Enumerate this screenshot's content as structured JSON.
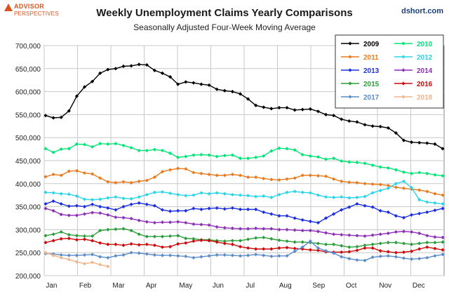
{
  "logo": {
    "line1": "ADVISOR",
    "line2": "PERSPECTIVES"
  },
  "site": "dshort.com",
  "chart_data": {
    "type": "line",
    "title": "Weekly Unemployment Claims Yearly Comparisons",
    "subtitle": "Seasonally Adjusted Four-Week Moving Average",
    "xlabel": "",
    "ylabel": "",
    "ylim": [
      200000,
      700000
    ],
    "yticks": [
      "200,000",
      "250,000",
      "300,000",
      "350,000",
      "400,000",
      "450,000",
      "500,000",
      "550,000",
      "600,000",
      "650,000",
      "700,000"
    ],
    "x_axis": "week of year (1-52)",
    "month_labels": [
      "Jan",
      "Feb",
      "Mar",
      "Apr",
      "May",
      "Jun",
      "Jul",
      "Aug",
      "Sep",
      "Oct",
      "Nov",
      "Dec"
    ],
    "grid": true,
    "legend_position": "top-right",
    "series": [
      {
        "name": "2009",
        "color": "#000000",
        "values": [
          548000,
          543000,
          544000,
          558000,
          590000,
          610000,
          622000,
          640000,
          648000,
          650000,
          655000,
          656000,
          659000,
          658000,
          646000,
          640000,
          632000,
          616000,
          621000,
          619000,
          616000,
          614000,
          605000,
          602000,
          600000,
          595000,
          584000,
          570000,
          566000,
          563000,
          565000,
          565000,
          560000,
          561000,
          562000,
          557000,
          550000,
          548000,
          540000,
          536000,
          534000,
          528000,
          525000,
          524000,
          521000,
          510000,
          494000,
          490000,
          489000,
          488000,
          486000,
          476000
        ]
      },
      {
        "name": "2010",
        "color": "#00e676",
        "values": [
          476000,
          468000,
          475000,
          476000,
          486000,
          485000,
          480000,
          487000,
          486000,
          487000,
          483000,
          478000,
          472000,
          472000,
          474000,
          472000,
          466000,
          457000,
          459000,
          462000,
          463000,
          462000,
          459000,
          461000,
          462000,
          455000,
          455000,
          457000,
          460000,
          471000,
          477000,
          476000,
          473000,
          463000,
          460000,
          458000,
          453000,
          455000,
          449000,
          447000,
          446000,
          444000,
          440000,
          436000,
          434000,
          430000,
          425000,
          422000,
          424000,
          422000,
          419000,
          417000
        ]
      },
      {
        "name": "2011",
        "color": "#e87b1e",
        "values": [
          415000,
          420000,
          418000,
          427000,
          428000,
          423000,
          421000,
          412000,
          404000,
          402000,
          404000,
          402000,
          405000,
          407000,
          414000,
          426000,
          430000,
          433000,
          432000,
          424000,
          422000,
          420000,
          418000,
          418000,
          420000,
          418000,
          414000,
          414000,
          411000,
          409000,
          408000,
          410000,
          412000,
          418000,
          418000,
          417000,
          416000,
          410000,
          405000,
          403000,
          402000,
          400000,
          399000,
          398000,
          396000,
          392000,
          390000,
          388000,
          386000,
          383000,
          378000,
          375000
        ]
      },
      {
        "name": "2012",
        "color": "#29d5e8",
        "values": [
          381000,
          380000,
          378000,
          377000,
          373000,
          366000,
          365000,
          366000,
          369000,
          371000,
          368000,
          367000,
          371000,
          376000,
          381000,
          382000,
          379000,
          376000,
          374000,
          375000,
          380000,
          378000,
          380000,
          378000,
          376000,
          375000,
          374000,
          372000,
          373000,
          370000,
          376000,
          381000,
          383000,
          381000,
          380000,
          375000,
          371000,
          370000,
          371000,
          369000,
          370000,
          372000,
          380000,
          385000,
          390000,
          400000,
          405000,
          391000,
          365000,
          360000,
          358000,
          356000
        ]
      },
      {
        "name": "2013",
        "color": "#1c2fe0",
        "values": [
          356000,
          362000,
          356000,
          351000,
          352000,
          350000,
          355000,
          350000,
          347000,
          343000,
          350000,
          355000,
          358000,
          355000,
          352000,
          343000,
          340000,
          341000,
          341000,
          346000,
          344000,
          346000,
          347000,
          345000,
          347000,
          344000,
          344000,
          344000,
          338000,
          334000,
          330000,
          330000,
          325000,
          321000,
          318000,
          315000,
          325000,
          334000,
          343000,
          349000,
          356000,
          352000,
          349000,
          341000,
          338000,
          330000,
          326000,
          332000,
          335000,
          338000,
          342000,
          346000
        ]
      },
      {
        "name": "2014",
        "color": "#8e2fb8",
        "values": [
          346000,
          341000,
          333000,
          331000,
          331000,
          334000,
          337000,
          336000,
          332000,
          327000,
          326000,
          324000,
          320000,
          317000,
          315000,
          316000,
          316000,
          317000,
          315000,
          312000,
          311000,
          310000,
          306000,
          304000,
          303000,
          302000,
          302000,
          303000,
          302000,
          302000,
          300000,
          300000,
          299000,
          298000,
          298000,
          296000,
          293000,
          290000,
          289000,
          288000,
          287000,
          286000,
          288000,
          290000,
          292000,
          295000,
          296000,
          295000,
          292000,
          287000,
          284000,
          283000
        ]
      },
      {
        "name": "2015",
        "color": "#2a9e3a",
        "values": [
          287000,
          290000,
          295000,
          289000,
          287000,
          286000,
          286000,
          298000,
          300000,
          301000,
          302000,
          298000,
          290000,
          285000,
          285000,
          285000,
          286000,
          287000,
          281000,
          280000,
          278000,
          278000,
          276000,
          275000,
          276000,
          276000,
          279000,
          282000,
          283000,
          280000,
          277000,
          275000,
          273000,
          273000,
          272000,
          270000,
          268000,
          268000,
          265000,
          262000,
          263000,
          266000,
          268000,
          270000,
          272000,
          272000,
          270000,
          268000,
          270000,
          272000,
          272000,
          273000
        ]
      },
      {
        "name": "2016",
        "color": "#cc0a0a",
        "values": [
          272000,
          276000,
          280000,
          281000,
          278000,
          279000,
          276000,
          271000,
          268000,
          268000,
          266000,
          269000,
          267000,
          268000,
          266000,
          262000,
          263000,
          269000,
          271000,
          275000,
          277000,
          276000,
          273000,
          270000,
          268000,
          263000,
          260000,
          258000,
          258000,
          258000,
          260000,
          261000,
          259000,
          258000,
          256000,
          255000,
          252000,
          251000,
          251000,
          252000,
          255000,
          260000,
          260000,
          254000,
          252000,
          250000,
          251000,
          253000,
          258000,
          262000,
          259000,
          256000
        ]
      },
      {
        "name": "2017",
        "color": "#5b8cc9",
        "values": [
          248000,
          247000,
          245000,
          244000,
          244000,
          245000,
          246000,
          241000,
          239000,
          243000,
          245000,
          250000,
          249000,
          247000,
          245000,
          244000,
          244000,
          243000,
          242000,
          239000,
          241000,
          243000,
          245000,
          245000,
          244000,
          243000,
          244000,
          246000,
          244000,
          242000,
          243000,
          243000,
          253000,
          262000,
          275000,
          260000,
          254000,
          249000,
          241000,
          237000,
          234000,
          233000,
          240000,
          242000,
          243000,
          241000,
          238000,
          236000,
          237000,
          239000,
          243000,
          246000
        ]
      },
      {
        "name": "2018",
        "color": "#f2b48a",
        "values": [
          250000,
          244000,
          239000,
          235000,
          230000,
          226000,
          229000,
          224000,
          220000
        ]
      }
    ]
  }
}
